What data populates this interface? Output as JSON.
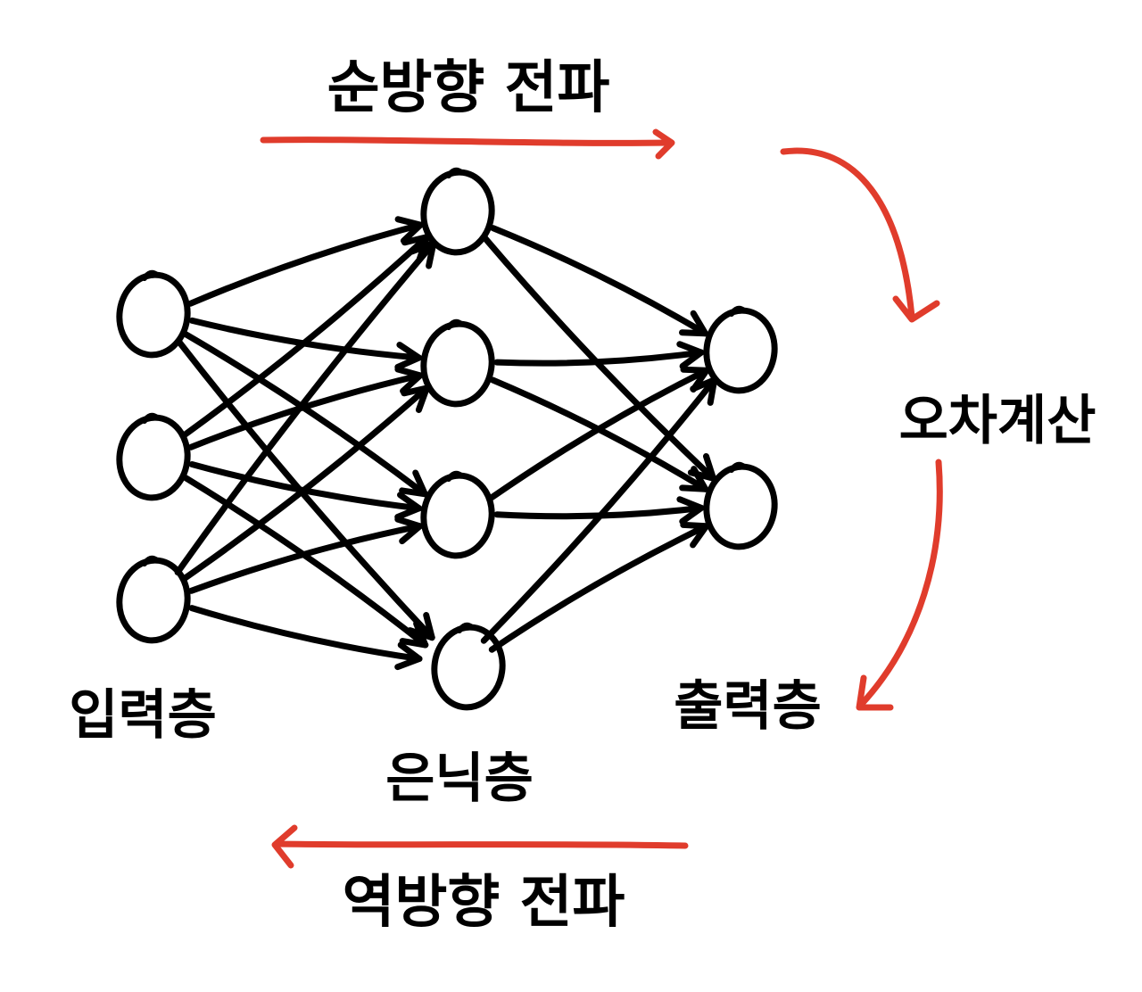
{
  "labels": {
    "forward": "순방향 전파",
    "error": "오차계산",
    "backward": "역방향 전파",
    "input_layer": "입력층",
    "hidden_layer": "은닉층",
    "output_layer": "출력층"
  },
  "layers": {
    "input_neurons": 3,
    "hidden_neurons": 4,
    "output_neurons": 2
  },
  "colors": {
    "ink": "#000000",
    "accent_red": "#e03c2c",
    "background": "#ffffff"
  }
}
